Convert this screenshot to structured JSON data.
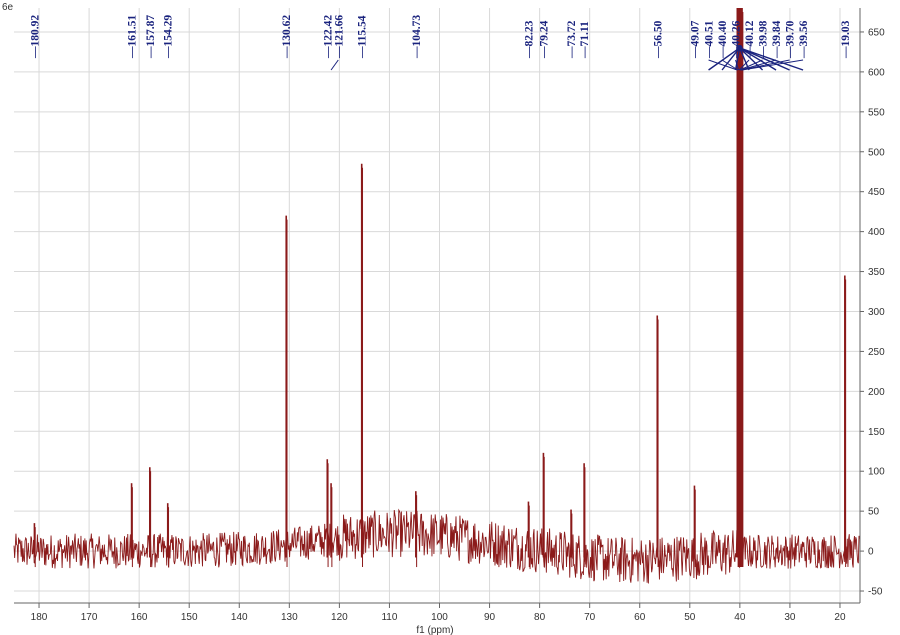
{
  "chart_data": {
    "type": "line",
    "title": "",
    "xlabel": "f1 (ppm)",
    "ylabel": "",
    "corner_label": "6e",
    "xlim": [
      185,
      16
    ],
    "ylim": [
      -65,
      680
    ],
    "x_ticks": [
      180,
      170,
      160,
      150,
      140,
      130,
      120,
      110,
      100,
      90,
      80,
      70,
      60,
      50,
      40,
      30,
      20
    ],
    "y_ticks": [
      -50,
      0,
      50,
      100,
      150,
      200,
      250,
      300,
      350,
      400,
      450,
      500,
      550,
      600,
      650
    ],
    "grid": true,
    "colors": {
      "spectrum": "#8b1a1a",
      "peak_labels": "#1a237e",
      "grid": "#d9d9d9",
      "axis": "#666666"
    },
    "baseline_noise": {
      "amplitude_low": 22,
      "amplitude_high": 30,
      "hump_center_ppm": 108,
      "hump_height": 22
    },
    "peaks": [
      {
        "label": "180.92",
        "x": 180.92,
        "y": 35
      },
      {
        "label": "161.51",
        "x": 161.51,
        "y": 85
      },
      {
        "label": "157.87",
        "x": 157.87,
        "y": 105
      },
      {
        "label": "154.29",
        "x": 154.29,
        "y": 60
      },
      {
        "label": "130.62",
        "x": 130.62,
        "y": 420
      },
      {
        "label": "122.42",
        "x": 122.42,
        "y": 115
      },
      {
        "label": "121.66",
        "x": 121.66,
        "y": 85
      },
      {
        "label": "115.54",
        "x": 115.54,
        "y": 485
      },
      {
        "label": "104.73",
        "x": 104.73,
        "y": 75
      },
      {
        "label": "82.23",
        "x": 82.23,
        "y": 62
      },
      {
        "label": "79.24",
        "x": 79.24,
        "y": 123
      },
      {
        "label": "73.72",
        "x": 73.72,
        "y": 52
      },
      {
        "label": "71.11",
        "x": 71.11,
        "y": 110
      },
      {
        "label": "56.50",
        "x": 56.5,
        "y": 295
      },
      {
        "label": "49.07",
        "x": 49.07,
        "y": 82
      },
      {
        "label": "40.51",
        "x": 40.51,
        "y": 680
      },
      {
        "label": "40.40",
        "x": 40.4,
        "y": 680
      },
      {
        "label": "40.26",
        "x": 40.26,
        "y": 680
      },
      {
        "label": "40.12",
        "x": 40.12,
        "y": 680
      },
      {
        "label": "39.98",
        "x": 39.98,
        "y": 680
      },
      {
        "label": "39.84",
        "x": 39.84,
        "y": 680
      },
      {
        "label": "39.70",
        "x": 39.7,
        "y": 680
      },
      {
        "label": "39.56",
        "x": 39.56,
        "y": 680
      },
      {
        "label": "19.03",
        "x": 19.03,
        "y": 345
      }
    ]
  }
}
